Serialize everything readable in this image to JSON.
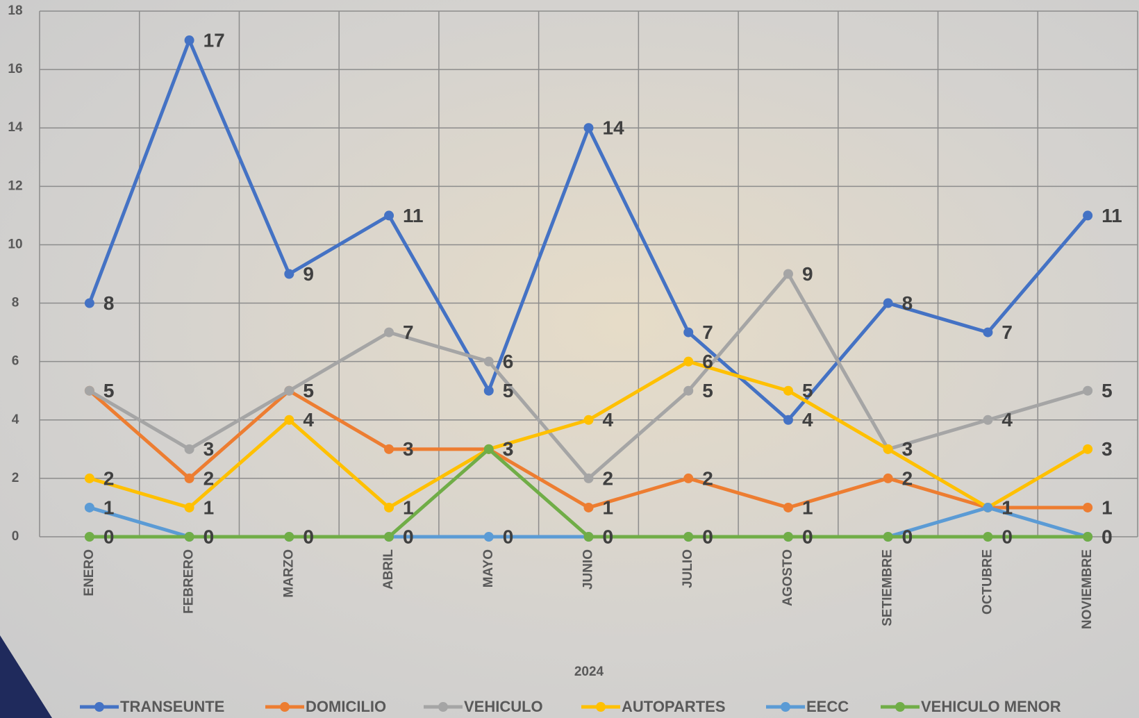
{
  "chart_data": {
    "type": "line",
    "x_label": "2024",
    "categories": [
      "ENERO",
      "FEBRERO",
      "MARZO",
      "ABRIL",
      "MAYO",
      "JUNIO",
      "JULIO",
      "AGOSTO",
      "SETIEMBRE",
      "OCTUBRE",
      "NOVIEMBRE"
    ],
    "series": [
      {
        "name": "TRANSEUNTE",
        "color": "#4472c4",
        "values": [
          8,
          17,
          9,
          11,
          5,
          14,
          7,
          4,
          8,
          7,
          11
        ]
      },
      {
        "name": "DOMICILIO",
        "color": "#ed7d31",
        "values": [
          5,
          2,
          5,
          3,
          3,
          1,
          2,
          1,
          2,
          1,
          1
        ]
      },
      {
        "name": "VEHICULO",
        "color": "#a5a5a5",
        "values": [
          5,
          3,
          5,
          7,
          6,
          2,
          5,
          9,
          3,
          4,
          5
        ]
      },
      {
        "name": "AUTOPARTES",
        "color": "#ffc000",
        "values": [
          2,
          1,
          4,
          1,
          3,
          4,
          6,
          5,
          3,
          1,
          3
        ]
      },
      {
        "name": "EECC",
        "color": "#5b9bd5",
        "values": [
          1,
          0,
          0,
          0,
          0,
          0,
          0,
          0,
          0,
          1,
          0
        ]
      },
      {
        "name": "VEHICULO MENOR",
        "color": "#70ad47",
        "values": [
          0,
          0,
          0,
          0,
          3,
          0,
          0,
          0,
          0,
          0,
          0
        ]
      }
    ],
    "ylim": [
      0,
      18
    ],
    "yticks": [
      0,
      2,
      4,
      6,
      8,
      10,
      12,
      14,
      16,
      18
    ],
    "grid": true,
    "legend": "bottom"
  }
}
